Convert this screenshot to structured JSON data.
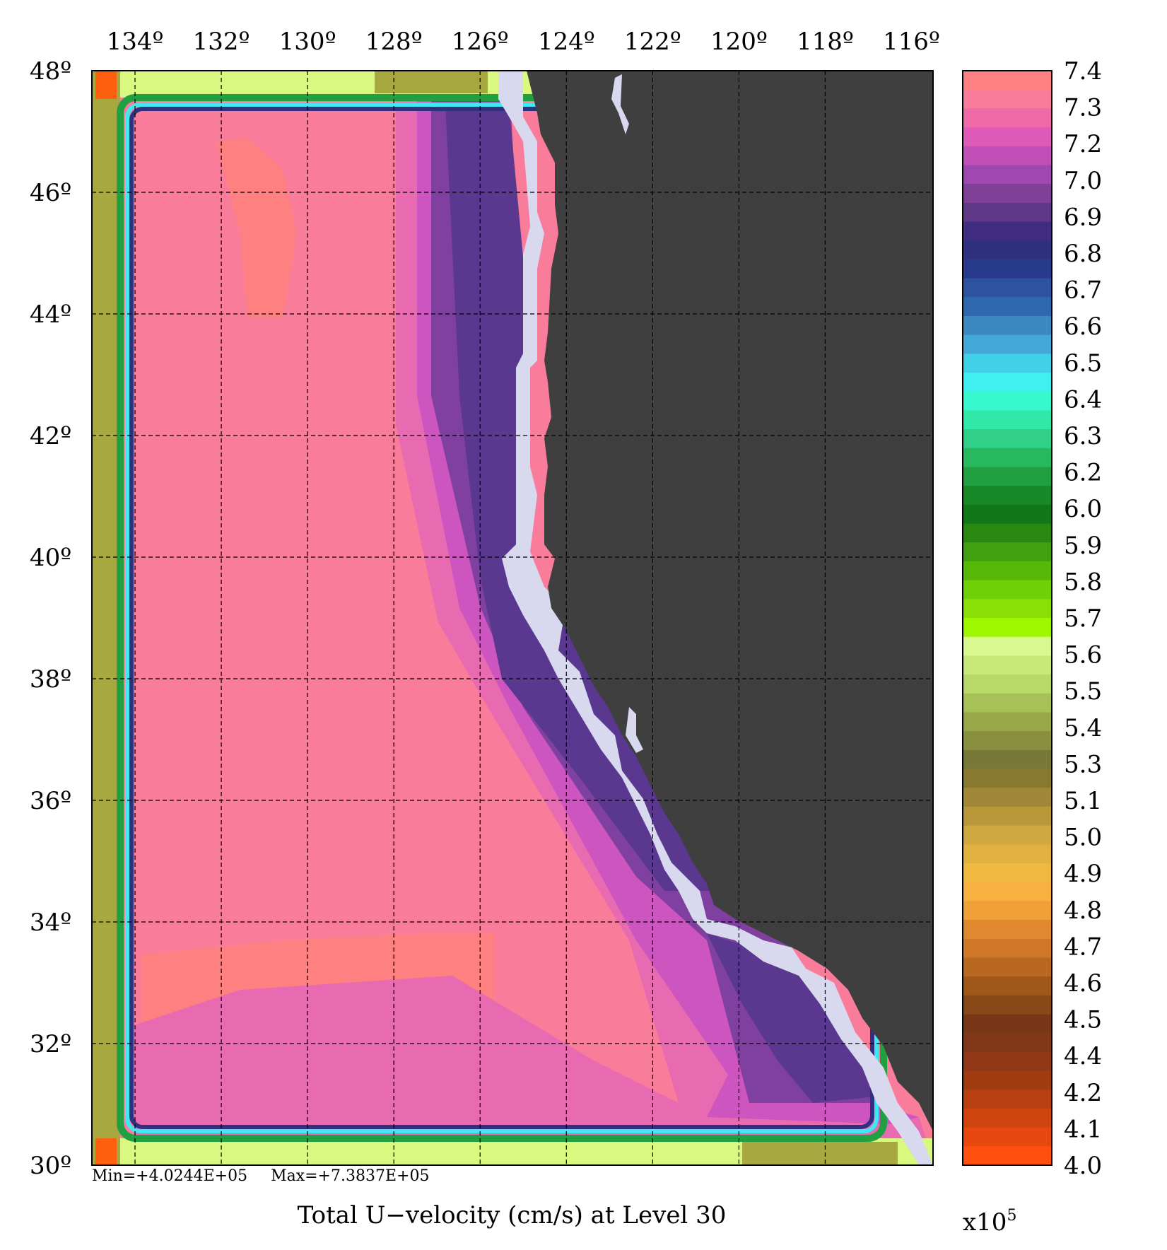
{
  "title": "Total U−velocity (cm/s) at Level 30",
  "stats": {
    "min_label": "Min=+4.0244E+05",
    "max_label": "Max=+7.3837E+05"
  },
  "multiplier": {
    "base": "x10",
    "exp": "5"
  },
  "lon_ticks": [
    {
      "value": 134,
      "label": "134º"
    },
    {
      "value": 132,
      "label": "132º"
    },
    {
      "value": 130,
      "label": "130º"
    },
    {
      "value": 128,
      "label": "128º"
    },
    {
      "value": 126,
      "label": "126º"
    },
    {
      "value": 124,
      "label": "124º"
    },
    {
      "value": 122,
      "label": "122º"
    },
    {
      "value": 120,
      "label": "120º"
    },
    {
      "value": 118,
      "label": "118º"
    },
    {
      "value": 116,
      "label": "116º"
    }
  ],
  "lat_ticks": [
    {
      "value": 48,
      "label": "48º"
    },
    {
      "value": 46,
      "label": "46º"
    },
    {
      "value": 44,
      "label": "44º"
    },
    {
      "value": 42,
      "label": "42º"
    },
    {
      "value": 40,
      "label": "40º"
    },
    {
      "value": 38,
      "label": "38º"
    },
    {
      "value": 36,
      "label": "36º"
    },
    {
      "value": 34,
      "label": "34º"
    },
    {
      "value": 32,
      "label": "32º"
    },
    {
      "value": 30,
      "label": "30º"
    }
  ],
  "colorbar": {
    "labels": [
      "7.4",
      "7.3",
      "7.2",
      "7.0",
      "6.9",
      "6.8",
      "6.7",
      "6.6",
      "6.5",
      "6.4",
      "6.3",
      "6.2",
      "6.0",
      "5.9",
      "5.8",
      "5.7",
      "5.6",
      "5.5",
      "5.4",
      "5.3",
      "5.1",
      "5.0",
      "4.9",
      "4.8",
      "4.7",
      "4.6",
      "4.5",
      "4.4",
      "4.2",
      "4.1",
      "4.0"
    ],
    "colors": [
      "#ff8080",
      "#f97c9a",
      "#f06aa8",
      "#e05ab8",
      "#c050b8",
      "#a048b0",
      "#804098",
      "#603888",
      "#402c80",
      "#303080",
      "#283a8c",
      "#2c52a0",
      "#3068b0",
      "#3c88c0",
      "#44a8d8",
      "#40d0e8",
      "#40f0f0",
      "#38f8d0",
      "#30e8a8",
      "#30d088",
      "#28b860",
      "#20a040",
      "#188828",
      "#107818",
      "#288810",
      "#40a010",
      "#58b808",
      "#70d008",
      "#88e008",
      "#a0f800",
      "#d8f890",
      "#c8e878",
      "#b8d868",
      "#a8c058",
      "#98a848",
      "#889040",
      "#787838",
      "#887830",
      "#a08838",
      "#b89838",
      "#d0a840",
      "#e0b040",
      "#f0b840",
      "#f8b040",
      "#f0a038",
      "#e08830",
      "#d07828",
      "#b86820",
      "#a05818",
      "#884818",
      "#783818",
      "#803818",
      "#903818",
      "#a03c10",
      "#b84010",
      "#d04410",
      "#e84810",
      "#ff5010"
    ],
    "min": 4.0,
    "max": 7.4
  },
  "colors": {
    "land": "#3f3f3f",
    "coast_buffer": "#d8d8ee",
    "ocean_main": "#f97c9a",
    "ocean_high": "#ff8080",
    "ocean_mid": "#e86ab0",
    "ocean_magenta": "#cc55c0",
    "ocean_purple": "#8040a0",
    "ocean_deep": "#5a3890",
    "edge_yellow": "#d8f880",
    "edge_olive": "#a8a840",
    "edge_orange": "#ff6010"
  }
}
